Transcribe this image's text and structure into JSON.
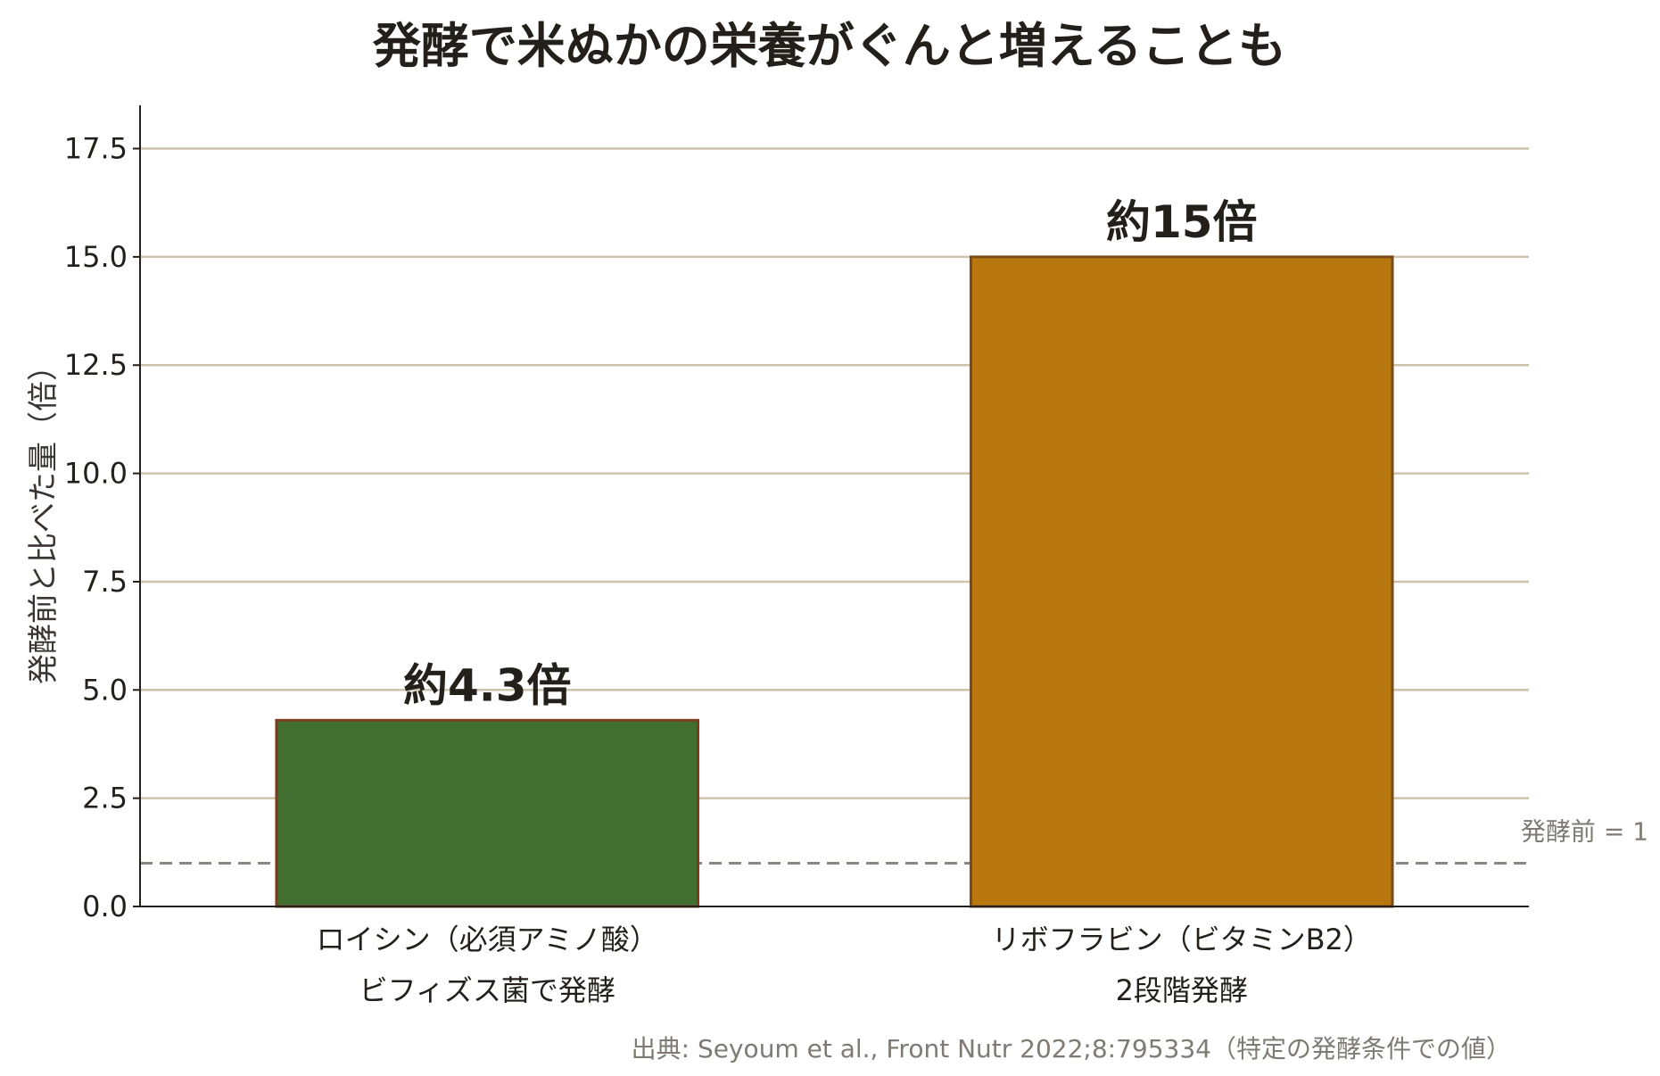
{
  "chart_data": {
    "type": "bar",
    "title": "発酵で米ぬかの栄養がぐんと増えることも",
    "ylabel": "発酵前と比べた量（倍）",
    "xlabel": "",
    "ylim": [
      0,
      18.5
    ],
    "yticks": [
      "0.0",
      "2.5",
      "5.0",
      "7.5",
      "10.0",
      "12.5",
      "15.0",
      "17.5"
    ],
    "ytick_values": [
      0,
      2.5,
      5,
      7.5,
      10,
      12.5,
      15,
      17.5
    ],
    "grid": true,
    "categories": [
      {
        "line1": "ロイシン（必須アミノ酸）",
        "line2": "ビフィズス菌で発酵"
      },
      {
        "line1": "リボフラビン（ビタミンB2）",
        "line2": "2段階発酵"
      }
    ],
    "values": [
      4.3,
      15
    ],
    "data_labels": [
      "約4.3倍",
      "約15倍"
    ],
    "bar_colors": [
      "#416e31",
      "#b8770f"
    ],
    "bar_edge_colors": [
      "#7a3b1e",
      "#7a4b18"
    ],
    "reference_line": {
      "value": 1,
      "label": "発酵前 = 1",
      "color": "#8a8580"
    },
    "grid_color": "#cfc2ad",
    "source": "出典: Seyoum et al., Front Nutr 2022;8:795334（特定の発酵条件での値）"
  }
}
